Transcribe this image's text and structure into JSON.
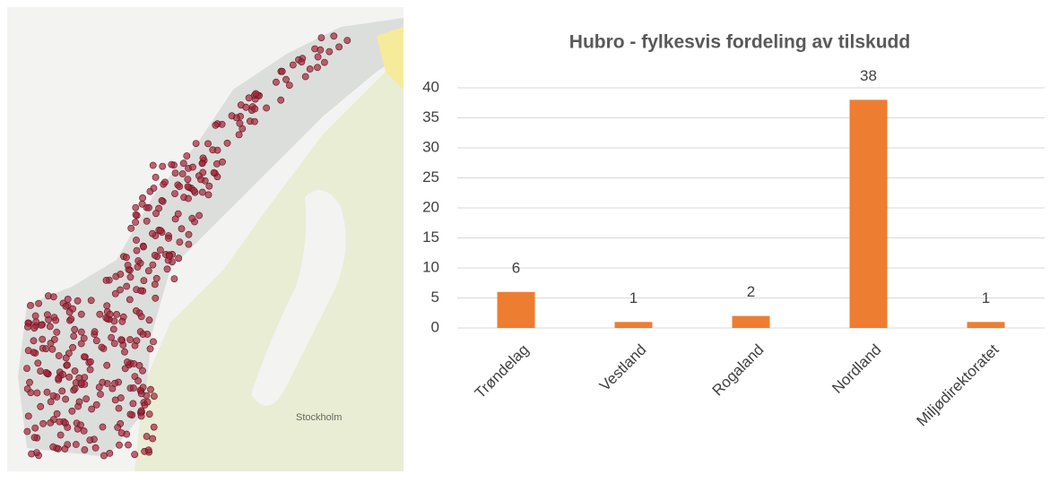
{
  "map_label": "Stockholm",
  "chart_data": {
    "type": "bar",
    "title": "Hubro - fylkesvis fordeling av tilskudd",
    "categories": [
      "Trøndelag",
      "Vestland",
      "Rogaland",
      "Nordland",
      "Miljødirektoratet"
    ],
    "values": [
      6,
      1,
      2,
      38,
      1
    ],
    "color": "#ed7d31",
    "ylim": [
      0,
      40
    ],
    "yticks": [
      0,
      5,
      10,
      15,
      20,
      25,
      30,
      35,
      40
    ],
    "grid": true
  }
}
